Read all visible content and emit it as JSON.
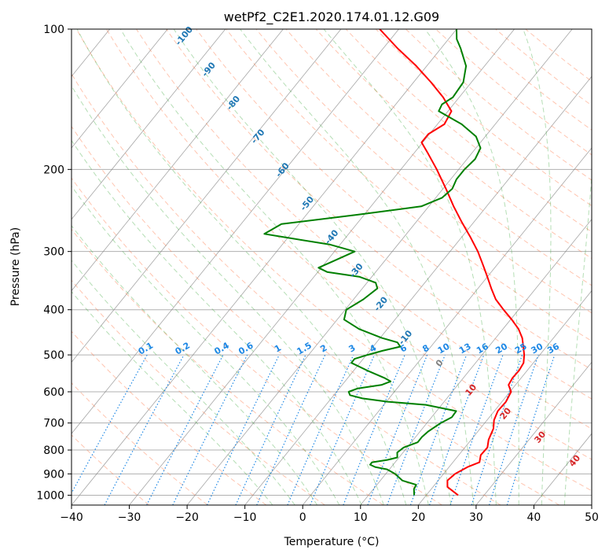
{
  "chart_data": {
    "type": "skew-t",
    "title": "wetPf2_C2E1.2020.174.01.12.G09",
    "xlabel": "Temperature (°C)",
    "ylabel": "Pressure (hPa)",
    "xlim": [
      -40,
      50
    ],
    "ylim": [
      1050,
      100
    ],
    "x_ticks": [
      -40,
      -30,
      -20,
      -10,
      0,
      10,
      20,
      30,
      40,
      50
    ],
    "y_ticks": [
      100,
      200,
      300,
      400,
      500,
      600,
      700,
      800,
      900,
      1000
    ],
    "grid": true,
    "colors": {
      "temperature": "#ff0000",
      "dewpoint": "#008000",
      "dry_adiabat": "#ff7f50",
      "moist_adiabat": "#2ca02c",
      "mixing_ratio": "#1e88e5",
      "isotherm": "#808080",
      "label_blue": "#1f77b4",
      "label_red": "#d62728"
    },
    "series": [
      {
        "name": "Temperature",
        "points": [
          {
            "p": 1000,
            "t": 25.5
          },
          {
            "p": 960,
            "t": 22.5
          },
          {
            "p": 930,
            "t": 21.6
          },
          {
            "p": 900,
            "t": 22.0
          },
          {
            "p": 870,
            "t": 23.2
          },
          {
            "p": 850,
            "t": 24.6
          },
          {
            "p": 820,
            "t": 23.8
          },
          {
            "p": 790,
            "t": 23.9
          },
          {
            "p": 760,
            "t": 23.0
          },
          {
            "p": 720,
            "t": 22.3
          },
          {
            "p": 690,
            "t": 21.2
          },
          {
            "p": 660,
            "t": 20.6
          },
          {
            "p": 630,
            "t": 20.7
          },
          {
            "p": 600,
            "t": 20.2
          },
          {
            "p": 580,
            "t": 18.8
          },
          {
            "p": 560,
            "t": 18.5
          },
          {
            "p": 540,
            "t": 18.6
          },
          {
            "p": 520,
            "t": 18.3
          },
          {
            "p": 500,
            "t": 17.3
          },
          {
            "p": 480,
            "t": 16.0
          },
          {
            "p": 460,
            "t": 14.6
          },
          {
            "p": 440,
            "t": 12.7
          },
          {
            "p": 420,
            "t": 10.2
          },
          {
            "p": 400,
            "t": 7.4
          },
          {
            "p": 380,
            "t": 4.6
          },
          {
            "p": 360,
            "t": 2.3
          },
          {
            "p": 340,
            "t": 0.0
          },
          {
            "p": 320,
            "t": -2.5
          },
          {
            "p": 300,
            "t": -5.2
          },
          {
            "p": 280,
            "t": -8.4
          },
          {
            "p": 260,
            "t": -12.0
          },
          {
            "p": 240,
            "t": -15.7
          },
          {
            "p": 220,
            "t": -19.5
          },
          {
            "p": 200,
            "t": -23.8
          },
          {
            "p": 185,
            "t": -27.5
          },
          {
            "p": 175,
            "t": -30.2
          },
          {
            "p": 168,
            "t": -30.2
          },
          {
            "p": 160,
            "t": -28.8
          },
          {
            "p": 150,
            "t": -29.4
          },
          {
            "p": 140,
            "t": -32.8
          },
          {
            "p": 130,
            "t": -37.0
          },
          {
            "p": 120,
            "t": -41.8
          },
          {
            "p": 110,
            "t": -47.5
          },
          {
            "p": 100,
            "t": -53.3
          }
        ]
      },
      {
        "name": "Dewpoint",
        "points": [
          {
            "p": 1000,
            "t": 17.9
          },
          {
            "p": 970,
            "t": 17.0
          },
          {
            "p": 950,
            "t": 16.8
          },
          {
            "p": 930,
            "t": 13.8
          },
          {
            "p": 900,
            "t": 11.6
          },
          {
            "p": 880,
            "t": 9.6
          },
          {
            "p": 870,
            "t": 7.2
          },
          {
            "p": 860,
            "t": 6.0
          },
          {
            "p": 850,
            "t": 6.0
          },
          {
            "p": 840,
            "t": 8.3
          },
          {
            "p": 830,
            "t": 9.7
          },
          {
            "p": 810,
            "t": 9.0
          },
          {
            "p": 790,
            "t": 9.4
          },
          {
            "p": 770,
            "t": 11.1
          },
          {
            "p": 750,
            "t": 11.1
          },
          {
            "p": 730,
            "t": 11.4
          },
          {
            "p": 700,
            "t": 12.4
          },
          {
            "p": 680,
            "t": 13.5
          },
          {
            "p": 660,
            "t": 13.4
          },
          {
            "p": 640,
            "t": 7.3
          },
          {
            "p": 630,
            "t": 0.2
          },
          {
            "p": 620,
            "t": -4.6
          },
          {
            "p": 610,
            "t": -7.2
          },
          {
            "p": 600,
            "t": -7.9
          },
          {
            "p": 590,
            "t": -6.8
          },
          {
            "p": 580,
            "t": -3.2
          },
          {
            "p": 570,
            "t": -2.1
          },
          {
            "p": 560,
            "t": -3.7
          },
          {
            "p": 540,
            "t": -7.7
          },
          {
            "p": 520,
            "t": -11.5
          },
          {
            "p": 510,
            "t": -11.5
          },
          {
            "p": 500,
            "t": -9.8
          },
          {
            "p": 490,
            "t": -7.8
          },
          {
            "p": 480,
            "t": -5.3
          },
          {
            "p": 470,
            "t": -6.4
          },
          {
            "p": 460,
            "t": -9.7
          },
          {
            "p": 440,
            "t": -14.9
          },
          {
            "p": 420,
            "t": -18.8
          },
          {
            "p": 400,
            "t": -19.8
          },
          {
            "p": 380,
            "t": -18.3
          },
          {
            "p": 360,
            "t": -17.4
          },
          {
            "p": 350,
            "t": -18.5
          },
          {
            "p": 340,
            "t": -22.1
          },
          {
            "p": 332,
            "t": -28.4
          },
          {
            "p": 325,
            "t": -30.5
          },
          {
            "p": 315,
            "t": -28.9
          },
          {
            "p": 300,
            "t": -26.5
          },
          {
            "p": 290,
            "t": -31.7
          },
          {
            "p": 280,
            "t": -40.3
          },
          {
            "p": 275,
            "t": -44.6
          },
          {
            "p": 262,
            "t": -43.0
          },
          {
            "p": 250,
            "t": -31.0
          },
          {
            "p": 240,
            "t": -21.3
          },
          {
            "p": 230,
            "t": -18.9
          },
          {
            "p": 220,
            "t": -18.4
          },
          {
            "p": 210,
            "t": -19.0
          },
          {
            "p": 200,
            "t": -19.0
          },
          {
            "p": 190,
            "t": -18.6
          },
          {
            "p": 180,
            "t": -19.2
          },
          {
            "p": 170,
            "t": -21.6
          },
          {
            "p": 160,
            "t": -25.8
          },
          {
            "p": 150,
            "t": -31.6
          },
          {
            "p": 145,
            "t": -32.0
          },
          {
            "p": 140,
            "t": -31.1
          },
          {
            "p": 130,
            "t": -31.4
          },
          {
            "p": 120,
            "t": -33.2
          },
          {
            "p": 110,
            "t": -36.6
          },
          {
            "p": 105,
            "t": -38.6
          },
          {
            "p": 100,
            "t": -40.0
          }
        ]
      }
    ],
    "mixing_ratio_labels": [
      "0.1",
      "0.2",
      "0.4",
      "0.6",
      "1",
      "1.5",
      "2",
      "3",
      "4",
      "6",
      "8",
      "10",
      "13",
      "16",
      "20",
      "25",
      "30",
      "36"
    ],
    "moist_adiabat_labels": [
      "-100",
      "-90",
      "-80",
      "-70",
      "-60",
      "-50",
      "-40",
      "-30",
      "-20",
      "-10",
      "0",
      "10",
      "20",
      "30",
      "40"
    ]
  }
}
